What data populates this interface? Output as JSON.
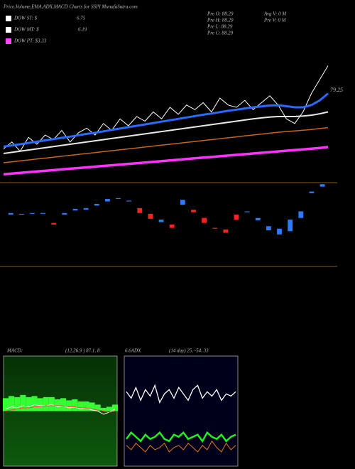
{
  "header": {
    "title": "Price,Volume,EMA,ADX,MACD Charts for SSPI MunafaSutra.com",
    "legend": [
      {
        "label": "DOW ST: $",
        "value": "6.75",
        "color": "#ffffff"
      },
      {
        "label": "DOW MT: $",
        "value": "6.19",
        "color": "#ffffff"
      },
      {
        "label": "DOW PT: $3.33",
        "color": "#ff44ff"
      }
    ],
    "stats": [
      "Pre O: 88.29",
      "Pre H: 88.29",
      "Pre L: 88.29",
      "Pre C: 88.29",
      "Avg V: 0 M",
      "Pre V: 0 M"
    ]
  },
  "chart_data": [
    {
      "type": "line",
      "annotation": "79.25",
      "series": [
        {
          "color": "#ffffff",
          "values": [
            44,
            47,
            43,
            49,
            46,
            50,
            48,
            52,
            47,
            51,
            53,
            50,
            55,
            52,
            57,
            54,
            58,
            56,
            60,
            57,
            62,
            59,
            63,
            61,
            64,
            60,
            66,
            63,
            62,
            65,
            61,
            64,
            67,
            63,
            57,
            55,
            60,
            68,
            74,
            80
          ]
        },
        {
          "color": "#2a6bff",
          "values": [
            45,
            45.5,
            46,
            46.6,
            47.1,
            47.7,
            48.2,
            48.8,
            49.3,
            49.9,
            50.5,
            51,
            51.6,
            52.2,
            52.8,
            53.4,
            54,
            54.6,
            55.2,
            55.8,
            56.4,
            57,
            57.6,
            58.2,
            58.8,
            59.3,
            59.9,
            60.5,
            61,
            61.5,
            62,
            62.4,
            62.8,
            62.9,
            62.5,
            62,
            62,
            63,
            65,
            68
          ]
        },
        {
          "color": "#e8e8e8",
          "values": [
            42,
            42.5,
            43,
            43.5,
            44,
            44.5,
            45,
            45.5,
            46,
            46.5,
            47,
            47.5,
            48,
            48.5,
            49,
            49.5,
            50,
            50.5,
            51,
            51.5,
            52,
            52.5,
            53,
            53.5,
            54,
            54.5,
            55,
            55.5,
            56,
            56.5,
            57,
            57.4,
            57.8,
            58,
            58,
            58,
            58.2,
            58.6,
            59.2,
            60
          ]
        },
        {
          "color": "#c8641e",
          "values": [
            38,
            38.4,
            38.8,
            39.2,
            39.6,
            40,
            40.4,
            40.8,
            41.2,
            41.6,
            42,
            42.4,
            42.8,
            43.2,
            43.6,
            44,
            44.4,
            44.8,
            45.2,
            45.6,
            46,
            46.4,
            46.8,
            47.2,
            47.6,
            48,
            48.4,
            48.8,
            49.2,
            49.6,
            50,
            50.4,
            50.8,
            51.2,
            51.5,
            51.8,
            52.1,
            52.4,
            52.8,
            53.2
          ]
        },
        {
          "color": "#ff33ff",
          "values": [
            33,
            33.3,
            33.6,
            33.9,
            34.2,
            34.5,
            34.8,
            35.1,
            35.4,
            35.7,
            36,
            36.3,
            36.6,
            36.9,
            37.2,
            37.5,
            37.8,
            38.1,
            38.4,
            38.7,
            39,
            39.3,
            39.6,
            39.9,
            40.2,
            40.5,
            40.8,
            41.1,
            41.4,
            41.7,
            42,
            42.3,
            42.6,
            42.9,
            43.2,
            43.5,
            43.8,
            44.1,
            44.4,
            44.8
          ]
        }
      ],
      "ylim": [
        30,
        90
      ]
    },
    {
      "type": "candlestick",
      "up_color": "#2a7bff",
      "down_color": "#ff2020",
      "open": [
        62,
        62,
        63,
        63,
        52,
        62,
        67,
        68,
        73,
        78,
        81,
        78,
        70,
        63,
        53,
        50,
        74,
        68,
        58,
        46,
        44,
        62,
        65,
        55,
        43,
        38,
        42,
        58,
        88,
        96
      ],
      "close": [
        64,
        63,
        64,
        64,
        50,
        64,
        69,
        70,
        75,
        81,
        82,
        79,
        64,
        57,
        56,
        46,
        80,
        65,
        52,
        45,
        40,
        56,
        66,
        58,
        48,
        45,
        56,
        66,
        90,
        99
      ],
      "ylim": [
        0,
        100
      ]
    },
    {
      "type": "macd",
      "title": "MACD:",
      "subtitle": "(12,26,9 ) 87.1, 8",
      "histogram": [
        1.2,
        1.4,
        1.3,
        1.5,
        1.3,
        1.4,
        1.2,
        1.3,
        1.3,
        1.1,
        1.2,
        1.0,
        1.1,
        0.9,
        0.9,
        0.8,
        0.6,
        0.3,
        0.4,
        0.6
      ],
      "hist_color": "#33ff33",
      "series": [
        {
          "color": "#ffffff",
          "values": [
            0.2,
            0.4,
            0.3,
            0.5,
            0.4,
            0.6,
            0.5,
            0.5,
            0.6,
            0.4,
            0.5,
            0.3,
            0.4,
            0.2,
            0.3,
            0.1,
            0.0,
            -0.3,
            -0.1,
            0.2
          ]
        },
        {
          "color": "#ff4444",
          "values": [
            0,
            0.1,
            0.2,
            0.3,
            0.3,
            0.4,
            0.4,
            0.5,
            0.5,
            0.5,
            0.5,
            0.4,
            0.4,
            0.3,
            0.3,
            0.2,
            0.1,
            0,
            -0.1,
            0
          ]
        }
      ],
      "ylim": [
        -5,
        5
      ]
    },
    {
      "type": "line",
      "title": "6.6ADX",
      "subtitle": "(14 day) 25, -54, 33",
      "series": [
        {
          "color": "#ffffff",
          "values": [
            68,
            62,
            72,
            60,
            70,
            64,
            74,
            58,
            66,
            70,
            62,
            72,
            66,
            60,
            70,
            74,
            62,
            68,
            64,
            70,
            60,
            66,
            64,
            68
          ]
        },
        {
          "color": "#22ee22",
          "values": [
            24,
            30,
            26,
            22,
            28,
            24,
            26,
            30,
            24,
            22,
            28,
            26,
            30,
            24,
            26,
            28,
            22,
            30,
            26,
            24,
            28,
            22,
            26,
            28
          ]
        },
        {
          "color": "#e07820",
          "values": [
            18,
            14,
            20,
            16,
            12,
            18,
            14,
            16,
            20,
            12,
            16,
            18,
            14,
            20,
            16,
            12,
            18,
            14,
            22,
            16,
            12,
            20,
            14,
            18
          ]
        }
      ],
      "ylim": [
        0,
        100
      ]
    }
  ]
}
